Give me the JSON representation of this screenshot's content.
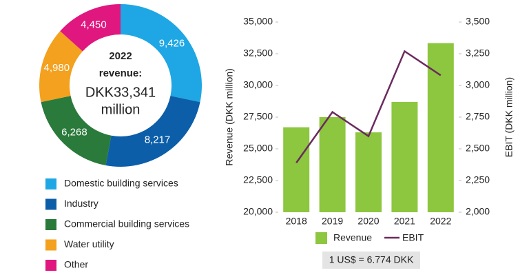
{
  "chart_data": [
    {
      "type": "pie",
      "categories": [
        "Domestic building services",
        "Industry",
        "Commercial building services",
        "Water utility",
        "Other"
      ],
      "values": [
        9426,
        8217,
        6268,
        4980,
        4450
      ],
      "value_labels": [
        "9,426",
        "8,217",
        "6,268",
        "4,980",
        "4,450"
      ],
      "colors": [
        "#1ea7e4",
        "#0c5ea8",
        "#2a7a3b",
        "#f3a11e",
        "#e0177f"
      ],
      "center_text": [
        "2022",
        "revenue:",
        "DKK33,341",
        "million"
      ]
    },
    {
      "type": "bar",
      "categories": [
        "2018",
        "2019",
        "2020",
        "2021",
        "2022"
      ],
      "series": [
        {
          "name": "Revenue",
          "type": "bar",
          "color": "#8dc63f",
          "values": [
            26700,
            27500,
            26300,
            28700,
            33341
          ]
        },
        {
          "name": "EBIT",
          "type": "line",
          "axis": "y2",
          "color": "#6b2a5e",
          "values": [
            2390,
            2790,
            2600,
            3270,
            3080
          ]
        }
      ],
      "ylabel": "Revenue (DKK million)",
      "y2label": "EBIT (DKK million)",
      "ylim": [
        20000,
        35000
      ],
      "yticks": [
        {
          "value": 20000,
          "label": "20,000"
        },
        {
          "value": 22500,
          "label": "22,500"
        },
        {
          "value": 25000,
          "label": "25,000"
        },
        {
          "value": 27500,
          "label": "27,500"
        },
        {
          "value": 30000,
          "label": "30,000"
        },
        {
          "value": 32500,
          "label": "32,500"
        },
        {
          "value": 35000,
          "label": "35,000"
        }
      ],
      "y2lim": [
        2000,
        3500
      ],
      "y2ticks": [
        {
          "value": 2000,
          "label": "2,000"
        },
        {
          "value": 2250,
          "label": "2,250"
        },
        {
          "value": 2500,
          "label": "2,500"
        },
        {
          "value": 2750,
          "label": "2,750"
        },
        {
          "value": 3000,
          "label": "3,000"
        },
        {
          "value": 3250,
          "label": "3,250"
        },
        {
          "value": 3500,
          "label": "3,500"
        }
      ],
      "note": "1 US$ = 6.774 DKK"
    }
  ]
}
